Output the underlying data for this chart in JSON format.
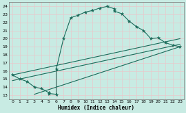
{
  "xlabel": "Humidex (Indice chaleur)",
  "xlim": [
    -0.5,
    23.5
  ],
  "ylim": [
    12.5,
    24.5
  ],
  "xtick_pos": [
    0,
    1,
    2,
    3,
    4,
    5,
    6,
    7,
    8,
    9,
    10,
    11,
    12,
    13,
    14,
    15,
    16,
    17,
    18,
    19,
    20,
    21,
    22,
    23
  ],
  "ytick_pos": [
    13,
    14,
    15,
    16,
    17,
    18,
    19,
    20,
    21,
    22,
    23,
    24
  ],
  "bg_color": "#c8ebe3",
  "line_color": "#1a6b5a",
  "main_x": [
    0,
    1,
    2,
    3,
    4,
    5,
    5,
    6,
    6,
    7,
    8,
    9,
    10,
    11,
    12,
    13,
    14,
    14,
    15,
    16,
    17,
    18,
    19,
    20,
    21,
    22,
    23
  ],
  "main_y": [
    15.5,
    15.0,
    14.7,
    14.0,
    13.8,
    13.3,
    13.2,
    13.1,
    16.2,
    20.0,
    22.6,
    22.9,
    23.3,
    23.5,
    23.8,
    24.0,
    23.7,
    23.4,
    23.1,
    22.2,
    21.5,
    21.0,
    20.0,
    20.1,
    19.5,
    19.2,
    19.0
  ],
  "trend1_x": [
    0,
    23
  ],
  "trend1_y": [
    15.5,
    20.0
  ],
  "trend2_x": [
    0,
    23
  ],
  "trend2_y": [
    14.8,
    19.3
  ],
  "trend3_x": [
    3,
    23
  ],
  "trend3_y": [
    13.1,
    19.0
  ]
}
